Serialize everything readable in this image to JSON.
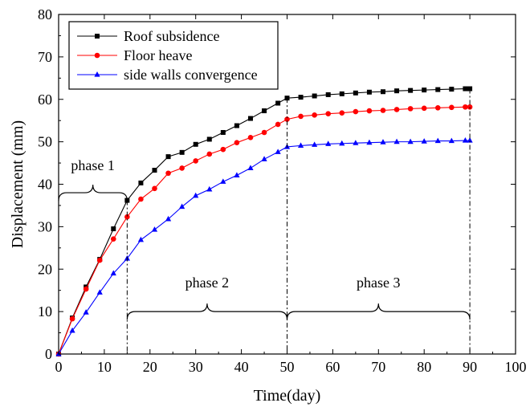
{
  "chart_data": {
    "type": "line",
    "title": "",
    "xlabel": "Time(day)",
    "ylabel": "Displacement (mm)",
    "xlim": [
      0,
      100
    ],
    "ylim": [
      0,
      80
    ],
    "xticks": [
      0,
      10,
      20,
      30,
      40,
      50,
      60,
      70,
      80,
      90,
      100
    ],
    "yticks": [
      0,
      10,
      20,
      30,
      40,
      50,
      60,
      70,
      80
    ],
    "grid": false,
    "legend_position": "top-left",
    "series": [
      {
        "name": "Roof subsidence",
        "color": "#000000",
        "marker": "square",
        "x": [
          0,
          3,
          6,
          9,
          12,
          15,
          18,
          21,
          24,
          27,
          30,
          33,
          36,
          39,
          42,
          45,
          48,
          50,
          53,
          56,
          59,
          62,
          65,
          68,
          71,
          74,
          77,
          80,
          83,
          86,
          89,
          90
        ],
        "y": [
          0,
          8.5,
          15.8,
          22.3,
          29.5,
          36.2,
          40.3,
          43.3,
          46.5,
          47.5,
          49.4,
          50.6,
          52.2,
          53.8,
          55.5,
          57.3,
          59.1,
          60.3,
          60.5,
          60.8,
          61.1,
          61.3,
          61.5,
          61.7,
          61.8,
          62.0,
          62.1,
          62.2,
          62.3,
          62.4,
          62.5,
          62.5
        ]
      },
      {
        "name": "Floor heave",
        "color": "#ff0000",
        "marker": "circle",
        "x": [
          0,
          3,
          6,
          9,
          12,
          15,
          18,
          21,
          24,
          27,
          30,
          33,
          36,
          39,
          42,
          45,
          48,
          50,
          53,
          56,
          59,
          62,
          65,
          68,
          71,
          74,
          77,
          80,
          83,
          86,
          89,
          90
        ],
        "y": [
          0,
          8.3,
          15.3,
          22.1,
          27.1,
          32.3,
          36.5,
          39.0,
          42.6,
          43.8,
          45.5,
          47.1,
          48.2,
          49.8,
          51.0,
          52.2,
          54.1,
          55.3,
          56.0,
          56.3,
          56.6,
          56.8,
          57.1,
          57.3,
          57.4,
          57.6,
          57.8,
          57.9,
          58.0,
          58.1,
          58.2,
          58.2
        ]
      },
      {
        "name": "side walls convergence",
        "color": "#0000ff",
        "marker": "triangle",
        "x": [
          0,
          3,
          6,
          9,
          12,
          15,
          18,
          21,
          24,
          27,
          30,
          33,
          36,
          39,
          42,
          45,
          48,
          50,
          53,
          56,
          59,
          62,
          65,
          68,
          71,
          74,
          77,
          80,
          83,
          86,
          89,
          90
        ],
        "y": [
          0,
          5.5,
          9.8,
          14.5,
          19.0,
          22.5,
          26.9,
          29.3,
          31.8,
          34.7,
          37.3,
          38.8,
          40.6,
          42.1,
          43.8,
          45.9,
          47.6,
          48.8,
          49.1,
          49.3,
          49.5,
          49.6,
          49.7,
          49.8,
          49.9,
          50.0,
          50.0,
          50.1,
          50.2,
          50.2,
          50.3,
          50.3
        ]
      }
    ],
    "phase_boundaries": [
      15,
      50,
      90
    ],
    "phases": [
      {
        "label": "phase 1",
        "x_start": 0,
        "x_end": 15,
        "bracket_y": 38
      },
      {
        "label": "phase 2",
        "x_start": 15,
        "x_end": 50,
        "bracket_y": 10
      },
      {
        "label": "phase 3",
        "x_start": 50,
        "x_end": 90,
        "bracket_y": 10
      }
    ]
  }
}
